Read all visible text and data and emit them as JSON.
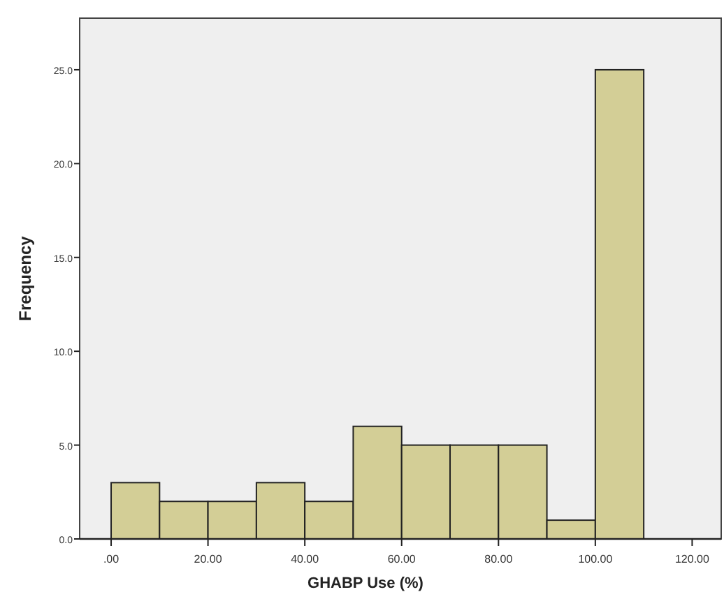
{
  "chart_data": {
    "type": "histogram",
    "xlabel": "GHABP Use (%)",
    "ylabel": "Frequency",
    "bins": [
      0,
      10,
      20,
      30,
      40,
      50,
      60,
      70,
      80,
      90,
      100,
      110
    ],
    "values": [
      3,
      2,
      2,
      3,
      2,
      6,
      5,
      5,
      5,
      1,
      25
    ],
    "color": "#d3ce96",
    "xlim": [
      -6.5,
      126
    ],
    "ylim": [
      0,
      27.75
    ],
    "xticks": [
      {
        "value": 0,
        "label": ".00"
      },
      {
        "value": 20,
        "label": "20.00"
      },
      {
        "value": 40,
        "label": "40.00"
      },
      {
        "value": 60,
        "label": "60.00"
      },
      {
        "value": 80,
        "label": "80.00"
      },
      {
        "value": 100,
        "label": "100.00"
      },
      {
        "value": 120,
        "label": "120.00"
      }
    ],
    "yticks": [
      {
        "value": 0,
        "label": "0.0"
      },
      {
        "value": 5,
        "label": "5.0"
      },
      {
        "value": 10,
        "label": "10.0"
      },
      {
        "value": 15,
        "label": "15.0"
      },
      {
        "value": 20,
        "label": "20.0"
      },
      {
        "value": 25,
        "label": "25.0"
      }
    ],
    "grid": false
  }
}
